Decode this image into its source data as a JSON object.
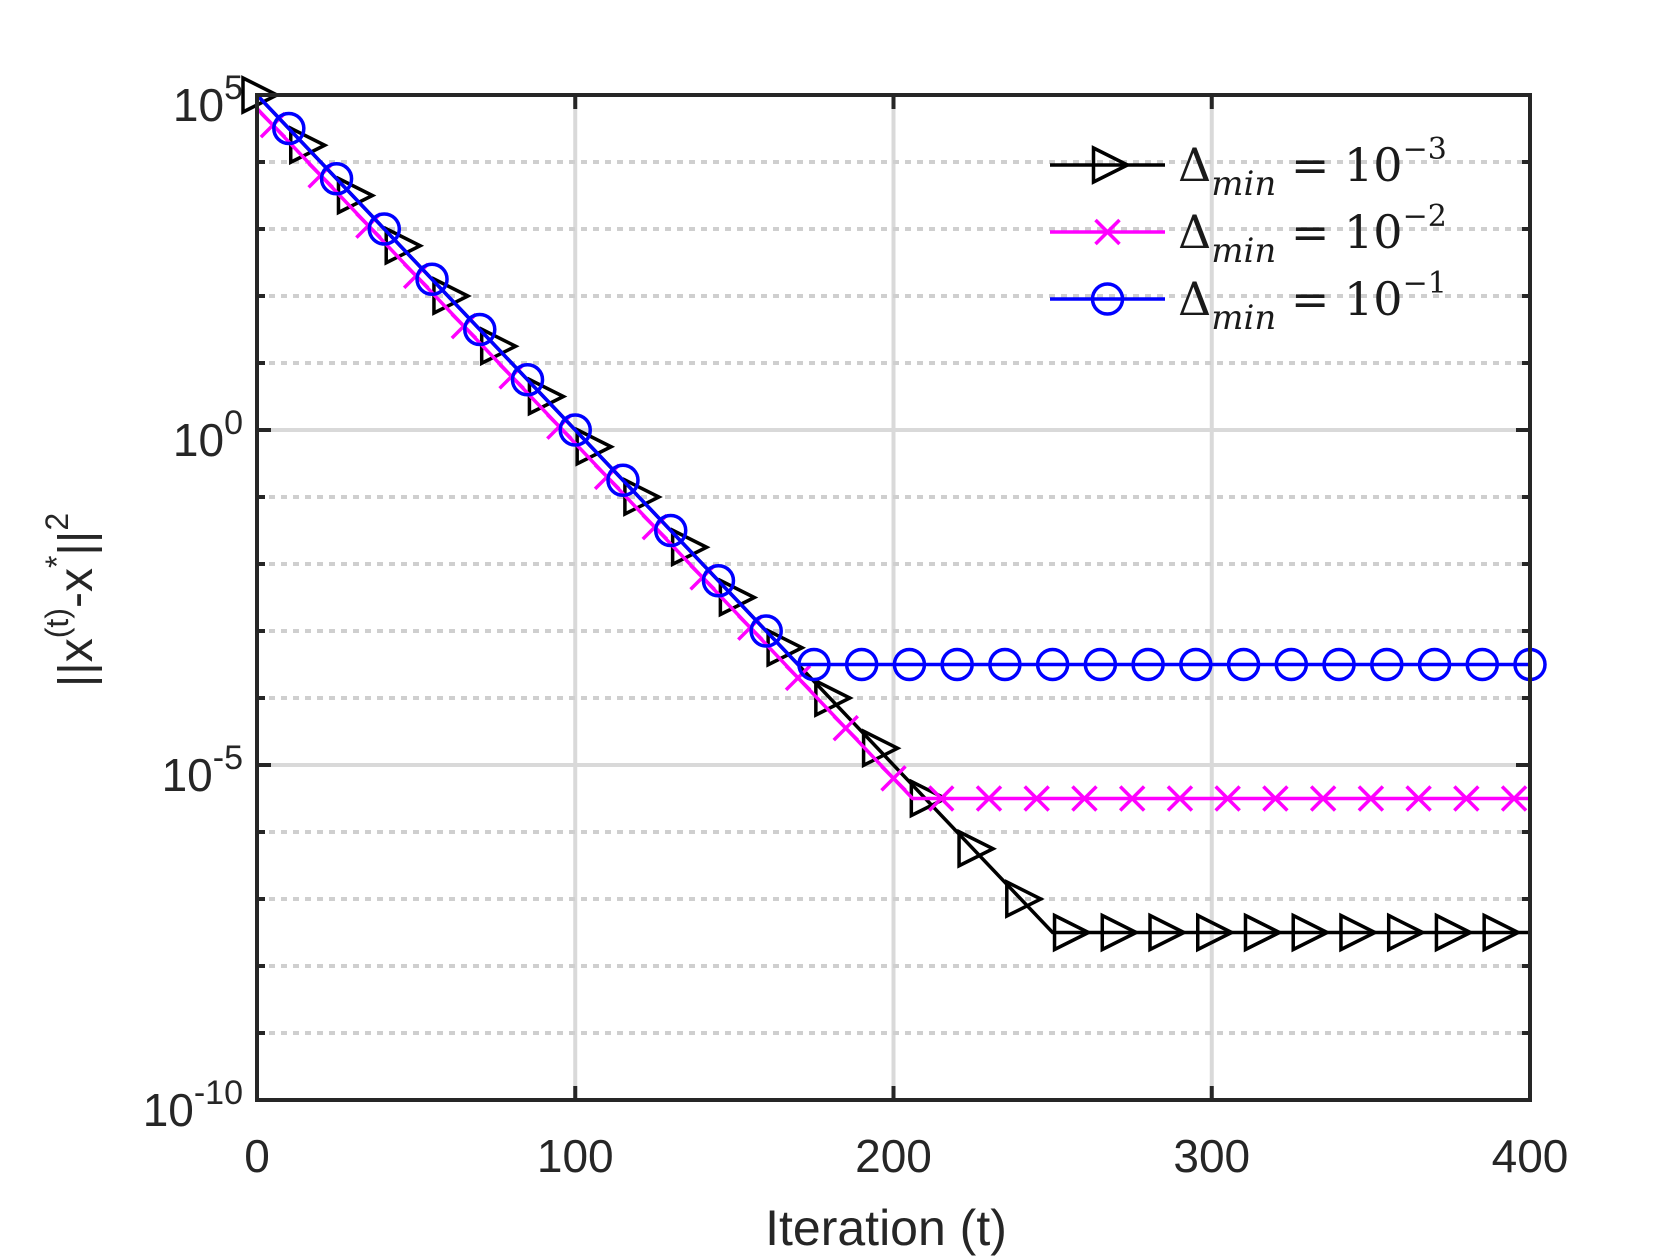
{
  "chart_data": {
    "type": "line",
    "title": "",
    "xlabel": "Iteration (t)",
    "ylabel": "||x^(t)-x^*||^2",
    "ylabel_parts": {
      "base": "||x",
      "sup1": "(t)",
      "mid": "-x",
      "sup2": "*",
      "tail": "||",
      "sup3": "2"
    },
    "yscale": "log",
    "xlim": [
      0,
      400
    ],
    "ylim_exp": [
      -10,
      5
    ],
    "x_ticks": [
      0,
      100,
      200,
      300,
      400
    ],
    "x_tick_labels": [
      "0",
      "100",
      "200",
      "300",
      "400"
    ],
    "y_ticks_exp": [
      -10,
      -5,
      0,
      5
    ],
    "y_tick_labels": [
      {
        "base": "10",
        "exp": "-10"
      },
      {
        "base": "10",
        "exp": "-5"
      },
      {
        "base": "10",
        "exp": "0"
      },
      {
        "base": "10",
        "exp": "5"
      }
    ],
    "grid": true,
    "legend_position": "top-right",
    "series": [
      {
        "name": "Δmin = 10^-3",
        "label_main": "Δ",
        "label_sub": "min",
        "label_eq": " = 10",
        "label_exp": "−3",
        "color": "#000000",
        "marker": "triangle-right",
        "start": {
          "t": 0,
          "log10": 5
        },
        "slope_per_iter": -0.05,
        "floor_log10": -7.5,
        "marker_start": 0,
        "marker_step": 15
      },
      {
        "name": "Δmin = 10^-2",
        "label_main": "Δ",
        "label_sub": "min",
        "label_eq": " = 10",
        "label_exp": "−2",
        "color": "#ff00ff",
        "marker": "x",
        "start": {
          "t": 0,
          "log10": 4.8
        },
        "slope_per_iter": -0.05,
        "floor_log10": -5.5,
        "marker_start": 5,
        "marker_step": 15
      },
      {
        "name": "Δmin = 10^-1",
        "label_main": "Δ",
        "label_sub": "min",
        "label_eq": " = 10",
        "label_exp": "−1",
        "color": "#0000ff",
        "marker": "circle",
        "start": {
          "t": 0,
          "log10": 5
        },
        "slope_per_iter": -0.05,
        "floor_log10": -3.5,
        "marker_start": 10,
        "marker_step": 15
      }
    ]
  }
}
